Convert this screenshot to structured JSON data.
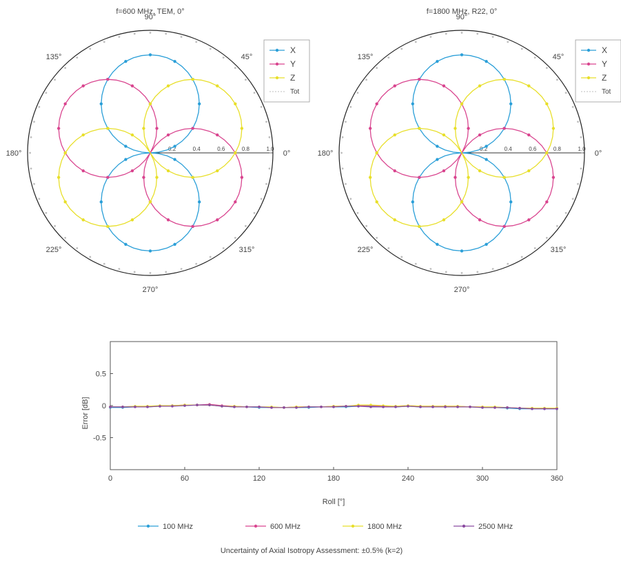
{
  "colors": {
    "X": "#2b9fd8",
    "Y": "#d9458f",
    "Z": "#e8df2a",
    "Tot": "#bdbdbd",
    "s100": "#2b9fd8",
    "s600": "#d9458f",
    "s1800": "#e8df2a",
    "s2500": "#8a4aa0"
  },
  "polar_left": {
    "title": "f=600 MHz, TEM, 0°",
    "angle_labels": [
      "0°",
      "45°",
      "90°",
      "135°",
      "180°",
      "225°",
      "270°",
      "315°"
    ],
    "radial_ticks": [
      "0.2",
      "0.4",
      "0.6",
      "0.8",
      "1.0"
    ],
    "legend": [
      "X",
      "Y",
      "Z",
      "Tot"
    ]
  },
  "polar_right": {
    "title": "f=1800 MHz, R22, 0°",
    "angle_labels": [
      "0°",
      "45°",
      "90°",
      "135°",
      "180°",
      "225°",
      "270°",
      "315°"
    ],
    "radial_ticks": [
      "0.2",
      "0.4",
      "0.6",
      "0.8",
      "1.0"
    ],
    "legend": [
      "X",
      "Y",
      "Z",
      "Tot"
    ]
  },
  "error_chart": {
    "ylabel": "Error [dB]",
    "xlabel": "Roll [°]",
    "x_ticks": [
      "0",
      "60",
      "120",
      "180",
      "240",
      "300",
      "360"
    ],
    "y_ticks": [
      "0.5",
      "0",
      "-0.5"
    ],
    "legend": [
      "100 MHz",
      "600 MHz",
      "1800 MHz",
      "2500 MHz"
    ]
  },
  "footnote": "Uncertainty of Axial Isotropy Assessment: ±0.5% (k=2)",
  "chart_data": [
    {
      "type": "scatter",
      "subtype": "polar",
      "title": "f=600 MHz, TEM, 0°",
      "theta_unit": "deg",
      "r_range": [
        0,
        1.0
      ],
      "legend_placement": "right",
      "grid": false,
      "series": [
        {
          "name": "X",
          "pattern": "r = 0.8·|cos(θ − 90°)|",
          "theta_step": 15
        },
        {
          "name": "Y",
          "pattern": "r = 0.8·|cos(θ − 150°)|",
          "theta_step": 15
        },
        {
          "name": "Z",
          "pattern": "r = 0.8·|cos(θ − 30°)|",
          "theta_step": 15
        },
        {
          "name": "Tot",
          "pattern": "r ≈ 0.98 constant",
          "theta_step": 15
        }
      ],
      "lobe_radius": 0.8,
      "tot_radius": 0.98,
      "axes": {
        "X": 90,
        "Y": 150,
        "Z": 30
      }
    },
    {
      "type": "scatter",
      "subtype": "polar",
      "title": "f=1800 MHz, R22, 0°",
      "theta_unit": "deg",
      "r_range": [
        0,
        1.0
      ],
      "legend_placement": "right",
      "grid": false,
      "series": [
        {
          "name": "X",
          "pattern": "r = 0.8·|cos(θ − 90°)|",
          "theta_step": 15
        },
        {
          "name": "Y",
          "pattern": "r = 0.8·|cos(θ − 150°)|",
          "theta_step": 15
        },
        {
          "name": "Z",
          "pattern": "r = 0.8·|cos(θ − 30°)|",
          "theta_step": 15
        },
        {
          "name": "Tot",
          "pattern": "r ≈ 0.98 constant",
          "theta_step": 15
        }
      ],
      "lobe_radius": 0.8,
      "tot_radius": 0.98,
      "axes": {
        "X": 90,
        "Y": 150,
        "Z": 30
      }
    },
    {
      "type": "line",
      "xlabel": "Roll [°]",
      "ylabel": "Error [dB]",
      "xlim": [
        0,
        360
      ],
      "ylim": [
        -1,
        1
      ],
      "grid": false,
      "legend_placement": "bottom",
      "x": [
        0,
        10,
        20,
        30,
        40,
        50,
        60,
        70,
        80,
        90,
        100,
        110,
        120,
        130,
        140,
        150,
        160,
        170,
        180,
        190,
        200,
        210,
        220,
        230,
        240,
        250,
        260,
        270,
        280,
        290,
        300,
        310,
        320,
        330,
        340,
        350,
        360
      ],
      "series": [
        {
          "name": "100 MHz",
          "values": [
            -0.03,
            -0.03,
            -0.02,
            -0.02,
            -0.01,
            0.0,
            0.0,
            0.01,
            0.01,
            -0.01,
            -0.02,
            -0.02,
            -0.03,
            -0.03,
            -0.03,
            -0.03,
            -0.03,
            -0.02,
            -0.02,
            -0.02,
            -0.01,
            -0.01,
            -0.02,
            -0.02,
            -0.01,
            -0.02,
            -0.02,
            -0.02,
            -0.02,
            -0.02,
            -0.03,
            -0.03,
            -0.04,
            -0.05,
            -0.05,
            -0.05,
            -0.05
          ]
        },
        {
          "name": "600 MHz",
          "values": [
            -0.02,
            -0.02,
            -0.02,
            -0.01,
            -0.01,
            0.0,
            0.01,
            0.01,
            0.02,
            0.0,
            -0.01,
            -0.02,
            -0.02,
            -0.03,
            -0.03,
            -0.02,
            -0.02,
            -0.02,
            -0.01,
            -0.01,
            0.0,
            0.0,
            -0.01,
            -0.01,
            0.0,
            -0.01,
            -0.01,
            -0.01,
            -0.01,
            -0.02,
            -0.02,
            -0.03,
            -0.03,
            -0.04,
            -0.04,
            -0.04,
            -0.04
          ]
        },
        {
          "name": "1800 MHz",
          "values": [
            -0.02,
            -0.02,
            -0.01,
            -0.01,
            0.0,
            0.0,
            0.01,
            0.01,
            0.01,
            -0.01,
            -0.01,
            -0.02,
            -0.02,
            -0.02,
            -0.03,
            -0.02,
            -0.02,
            -0.02,
            -0.01,
            -0.01,
            0.01,
            0.01,
            0.0,
            -0.01,
            0.0,
            -0.01,
            -0.01,
            -0.01,
            -0.01,
            -0.02,
            -0.02,
            -0.02,
            -0.03,
            -0.04,
            -0.04,
            -0.04,
            -0.04
          ]
        },
        {
          "name": "2500 MHz",
          "values": [
            -0.02,
            -0.02,
            -0.02,
            -0.02,
            -0.01,
            -0.01,
            0.0,
            0.01,
            0.01,
            -0.01,
            -0.02,
            -0.02,
            -0.02,
            -0.03,
            -0.03,
            -0.03,
            -0.02,
            -0.02,
            -0.02,
            -0.01,
            -0.01,
            -0.02,
            -0.02,
            -0.02,
            -0.01,
            -0.02,
            -0.02,
            -0.02,
            -0.02,
            -0.02,
            -0.03,
            -0.03,
            -0.03,
            -0.04,
            -0.05,
            -0.05,
            -0.05
          ]
        }
      ]
    }
  ]
}
